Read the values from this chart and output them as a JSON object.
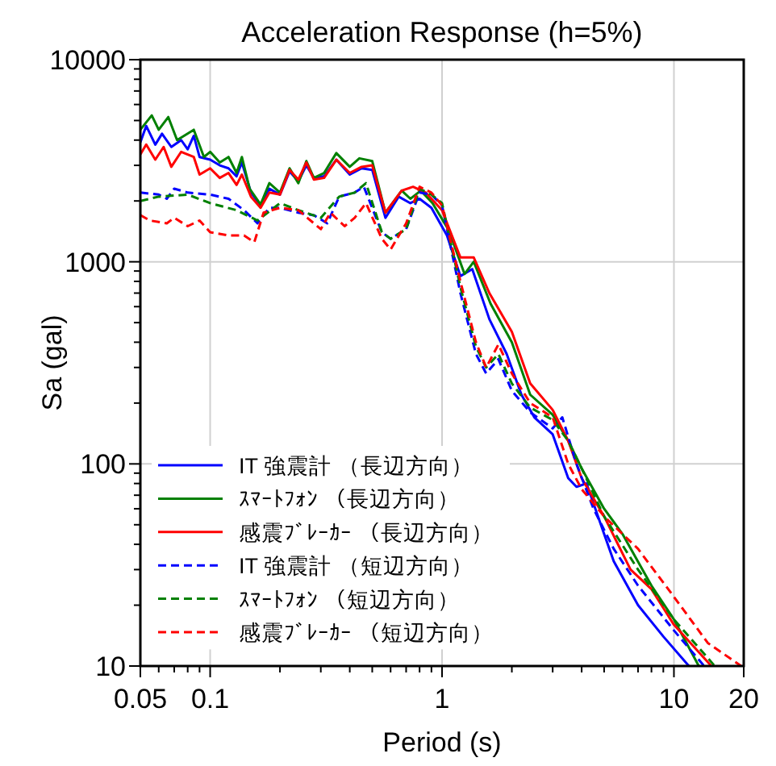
{
  "chart_data": {
    "type": "line",
    "title": "Acceleration Response (h=5%)",
    "xlabel": "Period (s)",
    "ylabel": "Sa (gal)",
    "log": "xy",
    "xlim": [
      0.05,
      20
    ],
    "xticks": [
      0.05,
      0.1,
      1,
      10,
      20
    ],
    "ylim": [
      10,
      10000
    ],
    "yticks": [
      10,
      100,
      1000,
      10000
    ],
    "grid": true,
    "legend": "bottom left",
    "series": [
      {
        "name": "IT 強震計 （長辺方向）",
        "color": "#0000ff",
        "line_style": "solid",
        "x": [
          0.05,
          0.053,
          0.058,
          0.062,
          0.068,
          0.075,
          0.08,
          0.085,
          0.09,
          0.1,
          0.11,
          0.12,
          0.13,
          0.137,
          0.15,
          0.165,
          0.18,
          0.2,
          0.22,
          0.24,
          0.26,
          0.28,
          0.31,
          0.35,
          0.4,
          0.45,
          0.5,
          0.57,
          0.65,
          0.73,
          0.8,
          0.9,
          1.05,
          1.2,
          1.35,
          1.6,
          1.9,
          2.2,
          2.5,
          3.0,
          3.5,
          3.8,
          4.2,
          5.0,
          5.5,
          7,
          9,
          11.6
        ],
        "values": [
          3900,
          4700,
          3800,
          4300,
          3700,
          4000,
          3600,
          4200,
          3300,
          3200,
          3000,
          2900,
          2650,
          3100,
          2200,
          1900,
          2300,
          2150,
          2800,
          2500,
          3000,
          2600,
          2650,
          3200,
          2700,
          2900,
          2850,
          1650,
          2100,
          1950,
          2050,
          1850,
          1350,
          850,
          920,
          520,
          350,
          220,
          170,
          140,
          85,
          77,
          80,
          45,
          33,
          20,
          14,
          10
        ]
      },
      {
        "name": "ｽﾏｰﾄﾌｫﾝ （長辺方向）",
        "color": "#008000",
        "line_style": "solid",
        "x": [
          0.05,
          0.056,
          0.06,
          0.066,
          0.072,
          0.085,
          0.094,
          0.1,
          0.11,
          0.12,
          0.13,
          0.137,
          0.148,
          0.165,
          0.18,
          0.2,
          0.22,
          0.24,
          0.26,
          0.28,
          0.31,
          0.35,
          0.4,
          0.44,
          0.5,
          0.57,
          0.67,
          0.73,
          0.81,
          0.91,
          1.07,
          1.25,
          1.37,
          1.62,
          2,
          2.4,
          3,
          3.5,
          4,
          5,
          6,
          8,
          10,
          12.8
        ],
        "values": [
          4500,
          5300,
          4500,
          5200,
          4000,
          4500,
          3300,
          3500,
          3100,
          3300,
          2750,
          3300,
          2300,
          1920,
          2450,
          2200,
          2900,
          2450,
          3150,
          2600,
          2750,
          3450,
          2950,
          3250,
          3150,
          1750,
          2250,
          2050,
          2250,
          1950,
          1430,
          870,
          1000,
          620,
          400,
          220,
          175,
          130,
          95,
          60,
          45,
          25,
          17,
          10
        ]
      },
      {
        "name": "感震ﾌﾞﾚｰｶｰ （長辺方向）",
        "color": "#ff0000",
        "line_style": "solid",
        "x": [
          0.05,
          0.053,
          0.058,
          0.063,
          0.068,
          0.075,
          0.085,
          0.09,
          0.1,
          0.11,
          0.12,
          0.13,
          0.137,
          0.15,
          0.165,
          0.18,
          0.2,
          0.22,
          0.24,
          0.26,
          0.28,
          0.31,
          0.35,
          0.4,
          0.45,
          0.5,
          0.57,
          0.67,
          0.75,
          0.85,
          1.0,
          1.2,
          1.37,
          1.6,
          2,
          2.4,
          3,
          3.5,
          4,
          5,
          6.5,
          8,
          10,
          14.5
        ],
        "values": [
          3400,
          3800,
          3200,
          3700,
          2950,
          3500,
          3300,
          2700,
          2900,
          2600,
          2750,
          2400,
          2700,
          2100,
          1850,
          2200,
          2150,
          2850,
          2550,
          3100,
          2550,
          2600,
          3200,
          2750,
          2950,
          3000,
          1750,
          2250,
          2350,
          2200,
          1800,
          1050,
          1050,
          700,
          450,
          250,
          185,
          130,
          85,
          55,
          30,
          24,
          16,
          10
        ]
      },
      {
        "name": "IT 強震計 （短辺方向）",
        "color": "#0000ff",
        "line_style": "dashed",
        "x": [
          0.05,
          0.06,
          0.065,
          0.07,
          0.08,
          0.1,
          0.12,
          0.14,
          0.16,
          0.18,
          0.2,
          0.24,
          0.28,
          0.32,
          0.36,
          0.42,
          0.46,
          0.55,
          0.6,
          0.7,
          0.8,
          0.9,
          1.0,
          1.2,
          1.4,
          1.55,
          1.75,
          2.0,
          2.4,
          3.0,
          3.3,
          3.8,
          4.5,
          5.5,
          7,
          10,
          13.5
        ],
        "values": [
          2200,
          2150,
          2050,
          2300,
          2200,
          2150,
          2050,
          1800,
          1550,
          1850,
          1850,
          1750,
          1700,
          1550,
          2100,
          2200,
          2350,
          1400,
          1300,
          1450,
          2200,
          2150,
          1900,
          700,
          350,
          280,
          330,
          230,
          180,
          150,
          170,
          100,
          60,
          38,
          25,
          15,
          10
        ]
      },
      {
        "name": "ｽﾏｰﾄﾌｫﾝ （短辺方向）",
        "color": "#008000",
        "line_style": "dashed",
        "x": [
          0.05,
          0.06,
          0.08,
          0.1,
          0.13,
          0.16,
          0.2,
          0.24,
          0.3,
          0.36,
          0.42,
          0.47,
          0.55,
          0.6,
          0.7,
          0.8,
          0.9,
          1.0,
          1.2,
          1.4,
          1.55,
          1.75,
          2,
          2.4,
          3,
          3.5,
          4,
          5,
          7,
          10,
          15
        ],
        "values": [
          2000,
          2100,
          2150,
          1950,
          1800,
          1600,
          1950,
          1800,
          1650,
          2100,
          2200,
          2450,
          1400,
          1300,
          1450,
          2300,
          2150,
          1950,
          750,
          380,
          300,
          350,
          250,
          190,
          165,
          130,
          95,
          55,
          30,
          17,
          10
        ]
      },
      {
        "name": "感震ﾌﾞﾚｰｶｰ （短辺方向）",
        "color": "#ff0000",
        "line_style": "dashed",
        "x": [
          0.05,
          0.055,
          0.065,
          0.07,
          0.08,
          0.09,
          0.1,
          0.12,
          0.14,
          0.155,
          0.17,
          0.2,
          0.24,
          0.3,
          0.33,
          0.38,
          0.42,
          0.47,
          0.55,
          0.6,
          0.7,
          0.8,
          0.9,
          1.0,
          1.2,
          1.4,
          1.55,
          1.75,
          2,
          2.4,
          3,
          3.5,
          4,
          5,
          7,
          10,
          14,
          19.5
        ],
        "values": [
          1700,
          1600,
          1550,
          1650,
          1500,
          1600,
          1400,
          1350,
          1350,
          1250,
          1750,
          1850,
          1800,
          1450,
          1750,
          1500,
          1650,
          1950,
          1300,
          1150,
          1550,
          2350,
          2200,
          1900,
          800,
          400,
          300,
          390,
          280,
          200,
          170,
          100,
          75,
          55,
          38,
          22,
          13,
          10
        ]
      }
    ]
  }
}
